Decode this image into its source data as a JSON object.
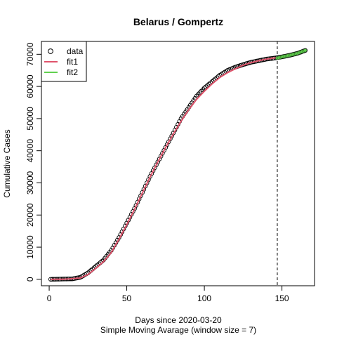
{
  "chart_data": {
    "type": "scatter",
    "title": "Belarus / Gompertz",
    "xlabel": "Days since 2020-03-20",
    "sublabel": "Simple Moving Avarage (window size = 7)",
    "ylabel": "Cumulative Cases",
    "xlim": [
      -5,
      171
    ],
    "ylim": [
      -2000,
      74000
    ],
    "xticks": [
      0,
      50,
      100,
      150
    ],
    "yticks": [
      0,
      10000,
      20000,
      30000,
      40000,
      50000,
      60000,
      70000
    ],
    "vline_x": 147,
    "grid": false,
    "legend_position": "top-left",
    "legend": [
      {
        "label": "data",
        "marker": "circle",
        "color": "#000000"
      },
      {
        "label": "fit1",
        "marker": "line",
        "color": "#DF536B"
      },
      {
        "label": "fit2",
        "marker": "line",
        "color": "#61D04F"
      }
    ],
    "colors": {
      "data": "#000000",
      "fit1": "#DF536B",
      "fit2": "#61D04F"
    },
    "data_anchors": {
      "x": [
        1,
        10,
        15,
        20,
        25,
        30,
        35,
        40,
        45,
        50,
        55,
        60,
        65,
        70,
        75,
        80,
        85,
        90,
        95,
        100,
        105,
        110,
        115,
        120,
        125,
        130,
        135,
        140,
        145,
        150,
        155,
        160,
        165
      ],
      "y": [
        0,
        100,
        150,
        600,
        2000,
        4000,
        6000,
        9000,
        13000,
        17500,
        22000,
        27000,
        32000,
        36500,
        41000,
        45500,
        50000,
        53500,
        57000,
        59500,
        61500,
        63500,
        65000,
        66000,
        66800,
        67500,
        68000,
        68500,
        68800,
        69200,
        69700,
        70300,
        71200
      ]
    },
    "fit1_anchors": {
      "x": [
        1,
        10,
        20,
        25,
        30,
        35,
        40,
        45,
        50,
        55,
        60,
        65,
        70,
        75,
        80,
        85,
        90,
        95,
        100,
        105,
        110,
        115,
        120,
        125,
        130,
        135,
        140,
        147
      ],
      "y": [
        0,
        30,
        400,
        1500,
        3400,
        5500,
        8300,
        12500,
        17000,
        21800,
        26800,
        31800,
        36500,
        41000,
        45200,
        49200,
        52800,
        56000,
        58500,
        60800,
        62800,
        64300,
        65500,
        66600,
        67400,
        68000,
        68500,
        69000
      ]
    },
    "fit2_anchors": {
      "x": [
        147,
        150,
        155,
        160,
        165
      ],
      "y": [
        68800,
        69200,
        69700,
        70300,
        71200
      ]
    }
  }
}
